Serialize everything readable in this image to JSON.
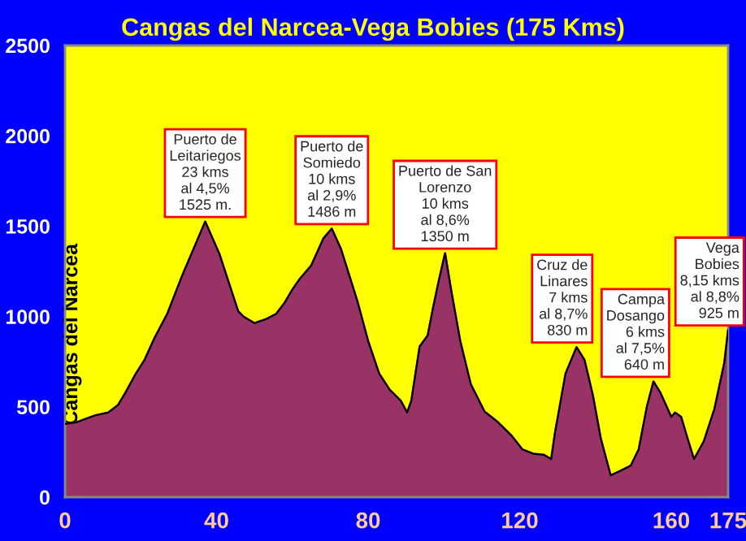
{
  "chart_data": {
    "type": "area",
    "title": "Cangas del Narcea-Vega Bobies (175 Kms)",
    "ylabel": "Cangas del Narcea",
    "x": [
      0,
      3,
      8,
      11.4,
      14,
      16,
      18.6,
      21,
      23.6,
      27,
      31,
      37,
      40.8,
      45.7,
      47.1,
      50,
      52.9,
      55.7,
      57.9,
      60,
      62,
      65,
      68.2,
      70.4,
      72.8,
      77.1,
      80,
      82.9,
      85.7,
      88.6,
      90.3,
      91.4,
      93.6,
      95.7,
      97.1,
      98.6,
      100.3,
      102,
      104.3,
      107.1,
      110.7,
      114.3,
      117.9,
      120.7,
      123.6,
      126.4,
      128.3,
      129.3,
      132.1,
      135,
      137.1,
      139.3,
      141.4,
      144,
      146.4,
      149.3,
      151.4,
      153.6,
      155.3,
      157.1,
      160,
      161,
      162.6,
      164.3,
      166,
      168.6,
      171.4,
      174,
      175
    ],
    "series": [
      {
        "color": "#993366",
        "values": [
          405,
          414,
          453,
          468,
          510,
          580,
          680,
          760,
          880,
          1015,
          1230,
          1525,
          1343,
          1029,
          999,
          963,
          984,
          1014,
          1074,
          1149,
          1209,
          1283,
          1432,
          1486,
          1375,
          1089,
          864,
          684,
          594,
          534,
          468,
          534,
          834,
          894,
          1044,
          1194,
          1350,
          1134,
          864,
          624,
          474,
          414,
          339,
          264,
          240,
          234,
          210,
          354,
          684,
          830,
          759,
          564,
          324,
          120,
          144,
          174,
          264,
          504,
          640,
          579,
          444,
          468,
          444,
          324,
          210,
          309,
          489,
          744,
          925
        ]
      }
    ],
    "xlim": [
      0,
      175
    ],
    "xticks": [
      0,
      40,
      80,
      120,
      160,
      175
    ],
    "ylim": [
      0,
      2500
    ],
    "yticks": [
      0,
      500,
      1000,
      1500,
      2000,
      2500
    ],
    "grid": false,
    "annotations": [
      {
        "text": "Puerto de\nLeitariegos\n23 kms\nal 4,5%\n1525 m.",
        "x": 37,
        "y": 1525
      },
      {
        "text": "Puerto de\nSomiedo\n10 kms\nal 2,9%\n1486 m",
        "x": 70.4,
        "y": 1486
      },
      {
        "text": "Puerto de San\nLorenzo\n10 kms\nal 8,6%\n1350 m",
        "x": 100.3,
        "y": 1350
      },
      {
        "text": "Cruz de\nLinares\n7 kms\nal 8,7%\n830 m",
        "x": 135,
        "y": 830
      },
      {
        "text": "Campa\nDosango\n6 kms\nal 7,5%\n640 m",
        "x": 155.3,
        "y": 640
      },
      {
        "text": "Vega\nBobies\n8,15 kms\nal 8,8%\n925 m",
        "x": 175,
        "y": 925
      }
    ]
  }
}
